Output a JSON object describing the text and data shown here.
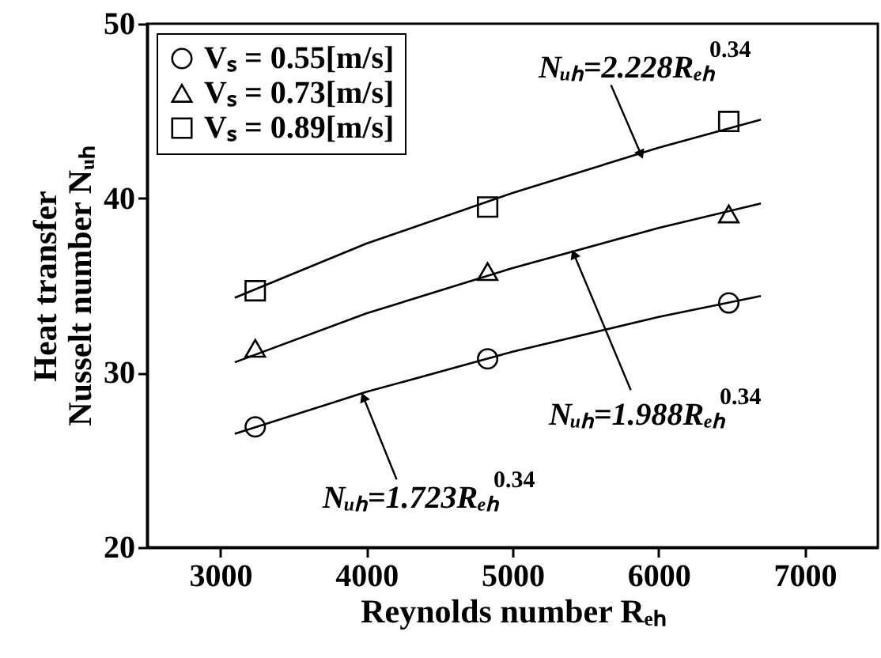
{
  "chart_data": {
    "type": "scatter",
    "xlabel": "Reynolds number Rₑₕ",
    "ylabel": [
      "Heat transfer",
      "Nusselt number Nᵤₕ"
    ],
    "xlim": [
      2500,
      7500
    ],
    "xticks": [
      3000,
      4000,
      5000,
      6000,
      7000
    ],
    "ylim": [
      20,
      50
    ],
    "yticks": [
      20,
      30,
      40,
      50
    ],
    "grid": false,
    "legend": "top left",
    "series": [
      {
        "name": "Vₛ = 0.55[m/s]",
        "marker": "circle",
        "color": "#000000",
        "x": [
          3240,
          4830,
          6480
        ],
        "values": [
          26.9,
          30.8,
          34.0
        ]
      },
      {
        "name": "Vₛ = 0.73[m/s]",
        "marker": "triangle",
        "color": "#000000",
        "x": [
          3240,
          4830,
          6480
        ],
        "values": [
          31.4,
          35.8,
          39.1
        ]
      },
      {
        "name": "Vₛ = 0.89[m/s]",
        "marker": "square",
        "color": "#000000",
        "x": [
          3240,
          4830,
          6480
        ],
        "values": [
          34.7,
          39.5,
          44.4
        ]
      },
      {
        "type": "line",
        "color": "#000000",
        "x": [
          3100,
          4000,
          5000,
          6000,
          6700
        ],
        "values": [
          34.3,
          37.4,
          40.3,
          42.9,
          44.5
        ]
      },
      {
        "type": "line",
        "color": "#000000",
        "x": [
          3100,
          4000,
          5000,
          6000,
          6700
        ],
        "values": [
          30.6,
          33.4,
          36.0,
          38.3,
          39.7
        ]
      },
      {
        "type": "line",
        "color": "#000000",
        "x": [
          3100,
          4000,
          5000,
          6000,
          6700
        ],
        "values": [
          26.5,
          28.9,
          31.2,
          33.2,
          34.4
        ]
      }
    ],
    "annotations": [
      {
        "text": "Nᵤₕ=2.228Rₑₕ$^{0.34}$",
        "x": 5880,
        "y": 42.5
      },
      {
        "text": "Nᵤₕ=1.988Rₑₕ$^{0.34}$",
        "x": 5420,
        "y": 36.8
      },
      {
        "text": "Nᵤₕ=1.723Rₑₕ$^{0.34}$",
        "x": 3980,
        "y": 28.6
      }
    ]
  }
}
